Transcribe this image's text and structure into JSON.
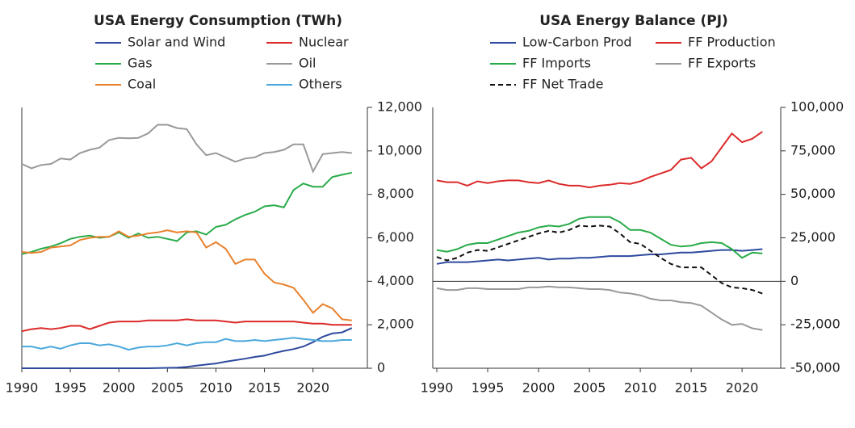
{
  "chart_data": [
    {
      "type": "line",
      "title": "USA Energy Consumption (TWh)",
      "x": [
        1990,
        1991,
        1992,
        1993,
        1994,
        1995,
        1996,
        1997,
        1998,
        1999,
        2000,
        2001,
        2002,
        2003,
        2004,
        2005,
        2006,
        2007,
        2008,
        2009,
        2010,
        2011,
        2012,
        2013,
        2014,
        2015,
        2016,
        2017,
        2018,
        2019,
        2020,
        2021,
        2022,
        2023,
        2024
      ],
      "xlim": [
        1990,
        2025.6
      ],
      "xticks": [
        1990,
        1995,
        2000,
        2005,
        2010,
        2015,
        2020
      ],
      "ylim": [
        0,
        12000
      ],
      "yticks": [
        0,
        {
          "value": 2000,
          "label": "2,000"
        },
        {
          "value": 4000,
          "label": "4,000"
        },
        {
          "value": 6000,
          "label": "6,000"
        },
        {
          "value": 8000,
          "label": "8,000"
        },
        {
          "value": 10000,
          "label": "10,000"
        },
        {
          "value": 12000,
          "label": "12,000"
        }
      ],
      "y_axis_side": "right",
      "grid": false,
      "series": [
        {
          "name": "Solar and Wind",
          "color": "#2e4a9e",
          "values": [
            0,
            0,
            0,
            0,
            0,
            0,
            0,
            0,
            0,
            0,
            0,
            0,
            0,
            0,
            10,
            20,
            30,
            60,
            120,
            170,
            220,
            300,
            370,
            440,
            520,
            580,
            700,
            800,
            880,
            1000,
            1200,
            1450,
            1600,
            1650,
            1850
          ]
        },
        {
          "name": "Nuclear",
          "color": "#dc2a2a",
          "values": [
            1700,
            1800,
            1850,
            1800,
            1850,
            1950,
            1950,
            1800,
            1950,
            2100,
            2150,
            2150,
            2150,
            2200,
            2200,
            2200,
            2200,
            2250,
            2200,
            2200,
            2200,
            2150,
            2100,
            2150,
            2150,
            2150,
            2150,
            2150,
            2150,
            2100,
            2050,
            2050,
            2000,
            2000,
            2000
          ]
        },
        {
          "name": "Gas",
          "color": "#2aab4a",
          "values": [
            5250,
            5350,
            5500,
            5600,
            5750,
            5950,
            6050,
            6100,
            6000,
            6050,
            6250,
            6000,
            6200,
            6000,
            6050,
            5950,
            5850,
            6250,
            6300,
            6150,
            6500,
            6600,
            6850,
            7050,
            7200,
            7450,
            7500,
            7400,
            8200,
            8500,
            8350,
            8350,
            8800,
            8900,
            9000
          ]
        },
        {
          "name": "Oil",
          "color": "#999999",
          "values": [
            9400,
            9200,
            9350,
            9400,
            9650,
            9600,
            9900,
            10050,
            10150,
            10500,
            10600,
            10580,
            10600,
            10800,
            11200,
            11200,
            11050,
            11000,
            10300,
            9800,
            9900,
            9700,
            9500,
            9650,
            9700,
            9900,
            9950,
            10050,
            10300,
            10300,
            9050,
            9850,
            9900,
            9950,
            9900
          ]
        },
        {
          "name": "Coal",
          "color": "#e8822e",
          "values": [
            5350,
            5300,
            5350,
            5550,
            5600,
            5650,
            5900,
            6000,
            6050,
            6050,
            6300,
            6050,
            6100,
            6200,
            6250,
            6350,
            6250,
            6300,
            6250,
            5550,
            5800,
            5500,
            4800,
            5000,
            5000,
            4350,
            3950,
            3850,
            3700,
            3150,
            2550,
            2950,
            2750,
            2250,
            2200
          ]
        },
        {
          "name": "Others",
          "color": "#4aa8dc",
          "values": [
            1000,
            1000,
            900,
            1000,
            900,
            1050,
            1150,
            1150,
            1050,
            1100,
            1000,
            850,
            950,
            1000,
            1000,
            1050,
            1150,
            1050,
            1150,
            1200,
            1200,
            1350,
            1250,
            1250,
            1300,
            1250,
            1300,
            1350,
            1400,
            1350,
            1300,
            1250,
            1250,
            1300,
            1300
          ]
        }
      ]
    },
    {
      "type": "line",
      "title": "USA Energy Balance (PJ)",
      "x": [
        1990,
        1991,
        1992,
        1993,
        1994,
        1995,
        1996,
        1997,
        1998,
        1999,
        2000,
        2001,
        2002,
        2003,
        2004,
        2005,
        2006,
        2007,
        2008,
        2009,
        2010,
        2011,
        2012,
        2013,
        2014,
        2015,
        2016,
        2017,
        2018,
        2019,
        2020,
        2021,
        2022
      ],
      "xlim": [
        1989.6,
        2023.8
      ],
      "xticks": [
        1990,
        1995,
        2000,
        2005,
        2010,
        2015,
        2020
      ],
      "ylim": [
        -50000,
        100000
      ],
      "yticks": [
        {
          "value": -50000,
          "label": "-50,000"
        },
        {
          "value": -25000,
          "label": "-25,000"
        },
        0,
        {
          "value": 25000,
          "label": "25,000"
        },
        {
          "value": 50000,
          "label": "50,000"
        },
        {
          "value": 75000,
          "label": "75,000"
        },
        {
          "value": 100000,
          "label": "100,000"
        }
      ],
      "y_axis_side": "right",
      "grid": false,
      "series": [
        {
          "name": "Low-Carbon Prod",
          "color": "#2e4a9e",
          "values": [
            10000,
            11000,
            11000,
            11000,
            11500,
            12000,
            12500,
            12000,
            12500,
            13000,
            13500,
            12500,
            13000,
            13000,
            13500,
            13500,
            14000,
            14500,
            14500,
            14500,
            15000,
            15500,
            15500,
            16000,
            16500,
            16500,
            17000,
            17500,
            18000,
            18000,
            17500,
            18000,
            18500
          ]
        },
        {
          "name": "FF Production",
          "color": "#dc2a2a",
          "values": [
            58000,
            57000,
            57000,
            55000,
            57500,
            56500,
            57500,
            58000,
            58000,
            57000,
            56500,
            58000,
            56000,
            55000,
            55000,
            54000,
            55000,
            55500,
            56500,
            56000,
            57500,
            60000,
            62000,
            64000,
            70000,
            71000,
            65000,
            69000,
            77000,
            85000,
            80000,
            82000,
            86000
          ]
        },
        {
          "name": "FF Imports",
          "color": "#2aab4a",
          "values": [
            18000,
            17000,
            18500,
            21000,
            22000,
            22000,
            24000,
            26000,
            28000,
            29000,
            31000,
            32000,
            31500,
            33000,
            36000,
            37000,
            37000,
            37000,
            34000,
            29500,
            29500,
            28000,
            24500,
            21000,
            20000,
            20500,
            22000,
            22500,
            22000,
            18500,
            13500,
            16500,
            16000
          ]
        },
        {
          "name": "FF Exports",
          "color": "#999999",
          "values": [
            -4000,
            -5000,
            -5000,
            -4000,
            -4000,
            -4500,
            -4500,
            -4500,
            -4500,
            -3500,
            -3500,
            -3000,
            -3500,
            -3500,
            -4000,
            -4500,
            -4500,
            -5000,
            -6500,
            -7000,
            -8000,
            -10000,
            -11000,
            -11000,
            -12000,
            -12500,
            -14000,
            -18000,
            -22000,
            -25000,
            -24500,
            -27000,
            -28000
          ]
        },
        {
          "name": "FF Net Trade",
          "color": "#111111",
          "dashed": true,
          "values": [
            14000,
            12000,
            13500,
            16500,
            18000,
            17500,
            19500,
            21500,
            23500,
            25500,
            27500,
            29000,
            28000,
            29500,
            32000,
            31500,
            32000,
            31500,
            27500,
            22500,
            21500,
            17500,
            13500,
            10000,
            8000,
            8000,
            8000,
            3500,
            -1000,
            -3500,
            -4000,
            -5000,
            -7000
          ]
        }
      ]
    }
  ]
}
